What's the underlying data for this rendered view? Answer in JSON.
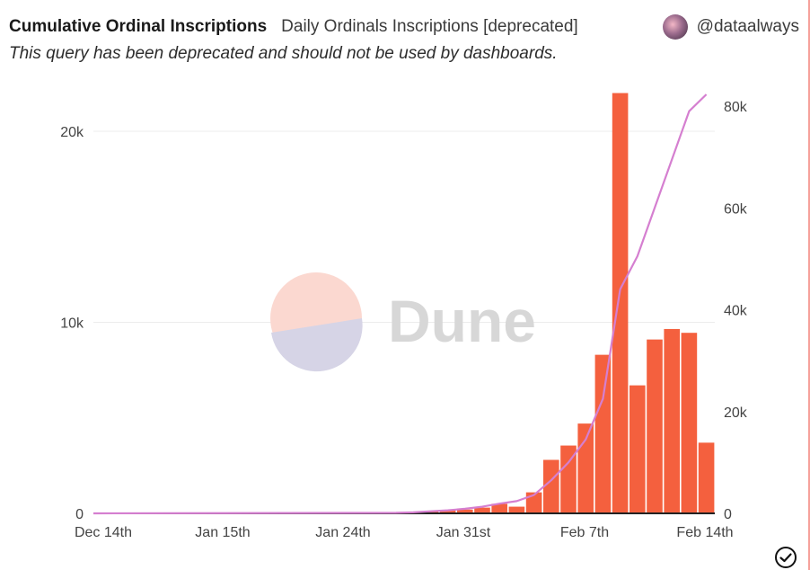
{
  "header": {
    "title": "Cumulative Ordinal Inscriptions",
    "query_name": "Daily Ordinals Inscriptions [deprecated]",
    "author": "@dataalways",
    "subtitle": "This query has been deprecated and should not be used by dashboards."
  },
  "watermark": {
    "text": "Dune"
  },
  "colors": {
    "bars": "#f4603e",
    "line": "#d57fd0",
    "watermark_top": "#fbd8d0",
    "watermark_bottom": "#d6d4e6"
  },
  "icons": {
    "avatar": "avatar-icon",
    "status": "check-circle-icon"
  },
  "chart_data": {
    "type": "bar",
    "x_start": "2022-12-14",
    "x_tick_labels": [
      "Dec 14th",
      "Jan 15th",
      "Jan 24th",
      "Jan 31st",
      "Feb 7th",
      "Feb 14th"
    ],
    "left_axis": {
      "ticks": [
        "0",
        "10k",
        "20k"
      ],
      "ylim": [
        0,
        20000
      ]
    },
    "right_axis": {
      "ticks": [
        "0",
        "20k",
        "40k",
        "60k",
        "80k"
      ],
      "ylim": [
        0,
        80000
      ]
    },
    "bar_series": {
      "x": [
        "2023-01-27",
        "2023-01-28",
        "2023-01-29",
        "2023-01-30",
        "2023-01-31",
        "2023-02-01",
        "2023-02-02",
        "2023-02-03",
        "2023-02-04",
        "2023-02-05",
        "2023-02-06",
        "2023-02-07",
        "2023-02-08",
        "2023-02-09",
        "2023-02-10",
        "2023-02-11",
        "2023-02-12",
        "2023-02-13",
        "2023-02-14"
      ],
      "values": [
        50,
        80,
        110,
        150,
        200,
        300,
        500,
        350,
        1100,
        2800,
        3550,
        4700,
        8300,
        22000,
        6700,
        9100,
        9650,
        9450,
        3700
      ]
    },
    "line_series": {
      "x": [
        "2022-12-14",
        "2023-01-27",
        "2023-01-28",
        "2023-01-29",
        "2023-01-30",
        "2023-01-31",
        "2023-02-01",
        "2023-02-02",
        "2023-02-03",
        "2023-02-04",
        "2023-02-05",
        "2023-02-06",
        "2023-02-07",
        "2023-02-08",
        "2023-02-09",
        "2023-02-10",
        "2023-02-11",
        "2023-02-12",
        "2023-02-13",
        "2023-02-14"
      ],
      "values": [
        0,
        100,
        200,
        400,
        600,
        900,
        1300,
        1900,
        2400,
        3600,
        6500,
        10000,
        14500,
        22500,
        44000,
        50500,
        60000,
        69500,
        79000,
        82300
      ]
    },
    "grid": true
  }
}
